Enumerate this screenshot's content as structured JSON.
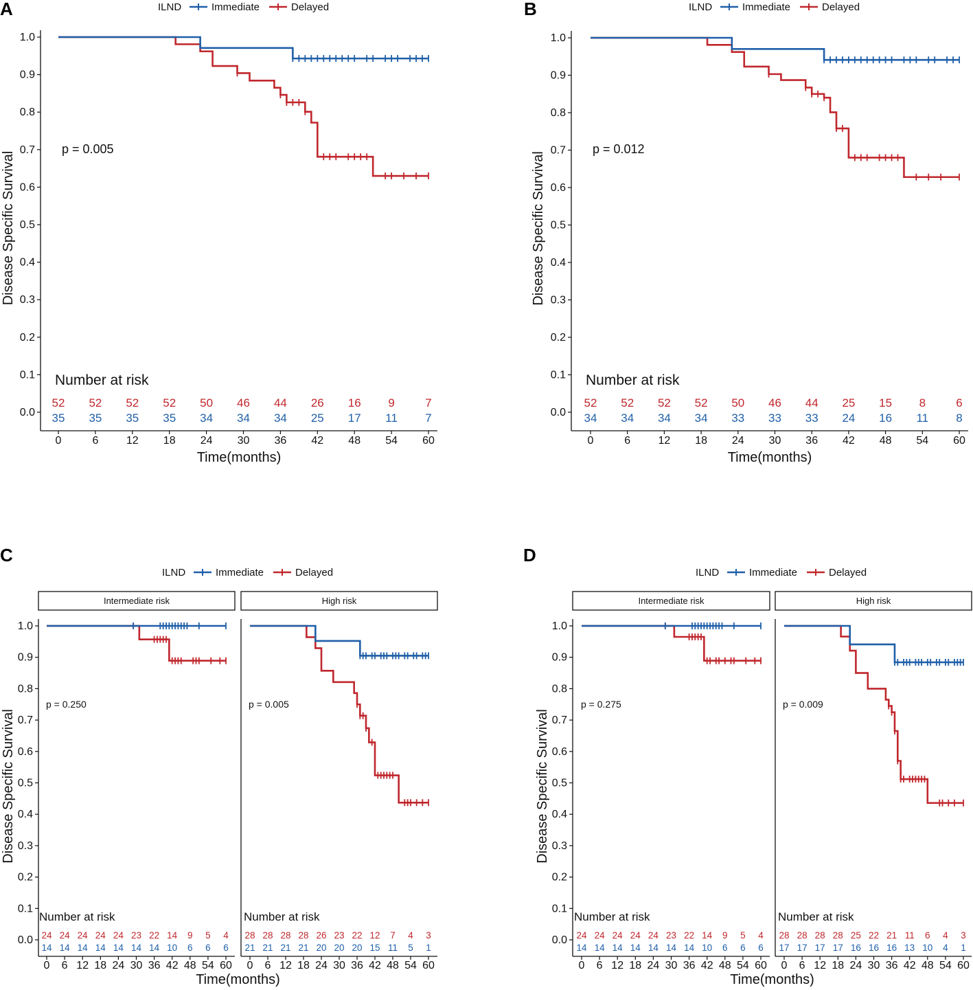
{
  "colors": {
    "immediate": "#1f5fa8",
    "delayed": "#c0272d"
  },
  "legend": {
    "title": "ILND",
    "immediate": "Immediate",
    "delayed": "Delayed"
  },
  "chart_data": [
    {
      "panel": "A",
      "type": "line",
      "subtype": "kaplan-meier",
      "ylabel": "Disease Specific Survival",
      "xlabel": "Time(months)",
      "yticks": [
        "0.0",
        "0.1",
        "0.2",
        "0.3",
        "0.4",
        "0.5",
        "0.6",
        "0.7",
        "0.8",
        "0.9",
        "1.0"
      ],
      "xticks": [
        0,
        6,
        12,
        18,
        24,
        30,
        36,
        42,
        48,
        54,
        60
      ],
      "xlim": [
        0,
        60
      ],
      "ylim": [
        0,
        1
      ],
      "facets": [
        {
          "label": "",
          "pvalue": "p = 0.005",
          "risk_title": "Number at risk",
          "risk_delayed": [
            52,
            52,
            52,
            52,
            50,
            46,
            44,
            26,
            16,
            9,
            7
          ],
          "risk_immediate": [
            35,
            35,
            35,
            35,
            34,
            34,
            34,
            25,
            17,
            11,
            7
          ],
          "series": [
            {
              "name": "Immediate",
              "steps": [
                [
                  0,
                  1.0
                ],
                [
                  23,
                  0.971
                ],
                [
                  38,
                  0.943
                ]
              ],
              "end": 60,
              "censors": [
                38,
                39,
                40,
                41,
                42,
                43,
                44,
                45,
                46,
                47,
                48,
                50,
                51,
                53,
                54,
                55,
                57,
                58,
                59,
                60
              ]
            },
            {
              "name": "Delayed",
              "steps": [
                [
                  0,
                  1.0
                ],
                [
                  19,
                  0.981
                ],
                [
                  23,
                  0.962
                ],
                [
                  25,
                  0.923
                ],
                [
                  29,
                  0.904
                ],
                [
                  31,
                  0.884
                ],
                [
                  35,
                  0.865
                ],
                [
                  36,
                  0.846
                ],
                [
                  37,
                  0.826
                ],
                [
                  40,
                  0.801
                ],
                [
                  41,
                  0.772
                ],
                [
                  42,
                  0.681
                ],
                [
                  51,
                  0.63
                ]
              ],
              "end": 60,
              "censors": [
                29,
                36,
                37,
                38,
                39,
                40,
                43,
                44,
                45,
                47,
                48,
                49,
                50,
                53,
                54,
                56,
                58,
                60
              ]
            }
          ]
        }
      ]
    },
    {
      "panel": "B",
      "type": "line",
      "subtype": "kaplan-meier",
      "ylabel": "Disease Specific Survival",
      "xlabel": "Time(months)",
      "yticks": [
        "0.0",
        "0.1",
        "0.2",
        "0.3",
        "0.4",
        "0.5",
        "0.6",
        "0.7",
        "0.8",
        "0.9",
        "1.0"
      ],
      "xticks": [
        0,
        6,
        12,
        18,
        24,
        30,
        36,
        42,
        48,
        54,
        60
      ],
      "xlim": [
        0,
        60
      ],
      "ylim": [
        0,
        1
      ],
      "facets": [
        {
          "label": "",
          "pvalue": "p = 0.012",
          "risk_title": "Number at risk",
          "risk_delayed": [
            52,
            52,
            52,
            52,
            50,
            46,
            44,
            25,
            15,
            8,
            6
          ],
          "risk_immediate": [
            34,
            34,
            34,
            34,
            33,
            33,
            33,
            24,
            16,
            11,
            8
          ],
          "series": [
            {
              "name": "Immediate",
              "steps": [
                [
                  0,
                  1.0
                ],
                [
                  23,
                  0.97
                ],
                [
                  38,
                  0.941
                ]
              ],
              "end": 60,
              "censors": [
                38,
                39,
                40,
                41,
                42,
                43,
                44,
                45,
                46,
                47,
                48,
                49,
                51,
                52,
                53,
                55,
                56,
                58,
                59,
                60
              ]
            },
            {
              "name": "Delayed",
              "steps": [
                [
                  0,
                  1.0
                ],
                [
                  19,
                  0.981
                ],
                [
                  23,
                  0.962
                ],
                [
                  25,
                  0.923
                ],
                [
                  29,
                  0.903
                ],
                [
                  31,
                  0.887
                ],
                [
                  35,
                  0.867
                ],
                [
                  36,
                  0.85
                ],
                [
                  38,
                  0.84
                ],
                [
                  39,
                  0.801
                ],
                [
                  40,
                  0.758
                ],
                [
                  42,
                  0.68
                ],
                [
                  51,
                  0.628
                ]
              ],
              "end": 60,
              "censors": [
                29,
                35,
                36,
                37,
                38,
                40,
                41,
                43,
                44,
                45,
                47,
                48,
                49,
                50,
                53,
                55,
                57,
                60
              ]
            }
          ]
        }
      ]
    },
    {
      "panel": "C",
      "type": "line",
      "subtype": "kaplan-meier",
      "ylabel": "Disease Specific Survival",
      "xlabel": "Time(months)",
      "yticks": [
        "0.0",
        "0.1",
        "0.2",
        "0.3",
        "0.4",
        "0.5",
        "0.6",
        "0.7",
        "0.8",
        "0.9",
        "1.0"
      ],
      "xticks": [
        0,
        6,
        12,
        18,
        24,
        30,
        36,
        42,
        48,
        54,
        60
      ],
      "xlim": [
        0,
        60
      ],
      "ylim": [
        0,
        1
      ],
      "facets": [
        {
          "label": "Intermediate risk",
          "pvalue": "p = 0.250",
          "risk_title": "Number at risk",
          "risk_delayed": [
            24,
            24,
            24,
            24,
            24,
            23,
            22,
            14,
            9,
            5,
            4
          ],
          "risk_immediate": [
            14,
            14,
            14,
            14,
            14,
            14,
            14,
            10,
            6,
            6,
            6
          ],
          "series": [
            {
              "name": "Immediate",
              "steps": [
                [
                  0,
                  1.0
                ]
              ],
              "end": 60,
              "censors": [
                29,
                38,
                39,
                40,
                41,
                42,
                43,
                44,
                45,
                46,
                47,
                51,
                60
              ]
            },
            {
              "name": "Delayed",
              "steps": [
                [
                  0,
                  1.0
                ],
                [
                  31,
                  0.957
                ],
                [
                  41,
                  0.889
                ]
              ],
              "end": 60,
              "censors": [
                29,
                36,
                37,
                38,
                39,
                40,
                42,
                43,
                44,
                45,
                49,
                50,
                51,
                55,
                58,
                60
              ]
            }
          ]
        },
        {
          "label": "High risk",
          "pvalue": "p = 0.005",
          "risk_title": "Number at risk",
          "risk_delayed": [
            28,
            28,
            28,
            28,
            26,
            23,
            22,
            12,
            7,
            4,
            3
          ],
          "risk_immediate": [
            21,
            21,
            21,
            21,
            20,
            20,
            20,
            15,
            11,
            5,
            1
          ],
          "series": [
            {
              "name": "Immediate",
              "steps": [
                [
                  0,
                  1.0
                ],
                [
                  22,
                  0.952
                ],
                [
                  37,
                  0.905
                ]
              ],
              "end": 60,
              "censors": [
                37,
                38,
                39,
                41,
                42,
                44,
                45,
                46,
                48,
                49,
                50,
                52,
                53,
                55,
                56,
                58,
                59,
                60
              ]
            },
            {
              "name": "Delayed",
              "steps": [
                [
                  0,
                  1.0
                ],
                [
                  19,
                  0.964
                ],
                [
                  22,
                  0.929
                ],
                [
                  24,
                  0.857
                ],
                [
                  28,
                  0.821
                ],
                [
                  35,
                  0.786
                ],
                [
                  36,
                  0.75
                ],
                [
                  37,
                  0.714
                ],
                [
                  39,
                  0.674
                ],
                [
                  40,
                  0.629
                ],
                [
                  42,
                  0.524
                ],
                [
                  50,
                  0.437
                ]
              ],
              "end": 60,
              "censors": [
                36,
                37,
                38,
                39,
                41,
                43,
                44,
                45,
                46,
                47,
                48,
                52,
                53,
                54,
                56,
                58,
                60
              ]
            }
          ]
        }
      ]
    },
    {
      "panel": "D",
      "type": "line",
      "subtype": "kaplan-meier",
      "ylabel": "Disease Specific Survival",
      "xlabel": "Time(months)",
      "yticks": [
        "0.0",
        "0.1",
        "0.2",
        "0.3",
        "0.4",
        "0.5",
        "0.6",
        "0.7",
        "0.8",
        "0.9",
        "1.0"
      ],
      "xticks": [
        0,
        6,
        12,
        18,
        24,
        30,
        36,
        42,
        48,
        54,
        60
      ],
      "xlim": [
        0,
        60
      ],
      "ylim": [
        0,
        1
      ],
      "facets": [
        {
          "label": "Intermediate risk",
          "pvalue": "p = 0.275",
          "risk_title": "Number at risk",
          "risk_delayed": [
            24,
            24,
            24,
            24,
            24,
            23,
            22,
            14,
            9,
            5,
            4
          ],
          "risk_immediate": [
            14,
            14,
            14,
            14,
            14,
            14,
            14,
            10,
            6,
            6,
            6
          ],
          "series": [
            {
              "name": "Immediate",
              "steps": [
                [
                  0,
                  1.0
                ]
              ],
              "end": 60,
              "censors": [
                28,
                37,
                38,
                39,
                40,
                41,
                42,
                43,
                44,
                45,
                46,
                47,
                51,
                60
              ]
            },
            {
              "name": "Delayed",
              "steps": [
                [
                  0,
                  1.0
                ],
                [
                  31,
                  0.965
                ],
                [
                  41,
                  0.889
                ]
              ],
              "end": 60,
              "censors": [
                28,
                36,
                37,
                38,
                39,
                40,
                42,
                43,
                45,
                46,
                48,
                50,
                51,
                55,
                58,
                60
              ]
            }
          ]
        },
        {
          "label": "High risk",
          "pvalue": "p = 0.009",
          "risk_title": "Number at risk",
          "risk_delayed": [
            28,
            28,
            28,
            28,
            25,
            22,
            21,
            11,
            6,
            4,
            3
          ],
          "risk_immediate": [
            17,
            17,
            17,
            17,
            16,
            16,
            16,
            13,
            10,
            4,
            1
          ],
          "series": [
            {
              "name": "Immediate",
              "steps": [
                [
                  0,
                  1.0
                ],
                [
                  22,
                  0.941
                ],
                [
                  37,
                  0.884
                ]
              ],
              "end": 60,
              "censors": [
                37,
                38,
                40,
                41,
                42,
                44,
                45,
                46,
                48,
                49,
                51,
                52,
                54,
                55,
                57,
                58,
                59,
                60
              ]
            },
            {
              "name": "Delayed",
              "steps": [
                [
                  0,
                  1.0
                ],
                [
                  19,
                  0.966
                ],
                [
                  22,
                  0.921
                ],
                [
                  24,
                  0.85
                ],
                [
                  28,
                  0.8
                ],
                [
                  34,
                  0.765
                ],
                [
                  35,
                  0.745
                ],
                [
                  36,
                  0.725
                ],
                [
                  37,
                  0.665
                ],
                [
                  38,
                  0.57
                ],
                [
                  39,
                  0.512
                ],
                [
                  48,
                  0.436
                ]
              ],
              "end": 60,
              "censors": [
                35,
                36,
                37,
                38,
                39,
                40,
                42,
                43,
                44,
                45,
                46,
                47,
                52,
                53,
                55,
                57,
                60
              ]
            }
          ]
        }
      ]
    }
  ]
}
